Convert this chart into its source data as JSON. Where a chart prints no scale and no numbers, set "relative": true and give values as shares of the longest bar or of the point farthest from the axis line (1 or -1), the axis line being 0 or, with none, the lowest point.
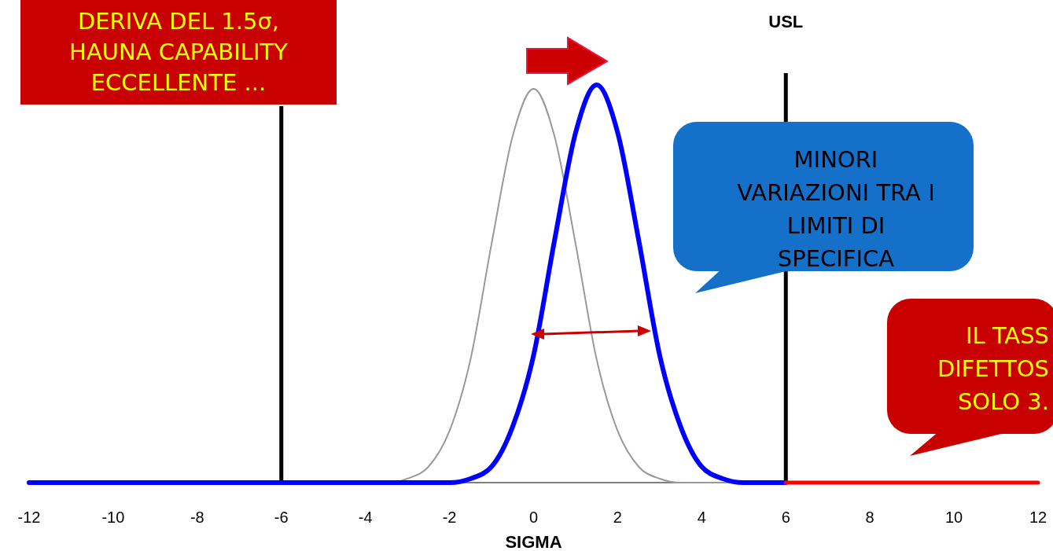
{
  "chart_data": {
    "type": "line",
    "relative": true,
    "xlabel": "SIGMA",
    "xlim": [
      -12,
      12
    ],
    "xticks": [
      -12,
      -10,
      -8,
      -6,
      -4,
      -2,
      0,
      2,
      4,
      6,
      8,
      10,
      12
    ],
    "series": [
      {
        "color": "#999999",
        "x": [
          -3.3,
          -3,
          -2.5,
          -2,
          -1.5,
          -1,
          -0.5,
          0,
          0.5,
          1,
          1.5,
          2,
          2.5,
          3,
          3.5,
          4,
          5
        ],
        "values": [
          0,
          0.01,
          0.04,
          0.13,
          0.31,
          0.6,
          0.87,
          0.99,
          0.87,
          0.6,
          0.31,
          0.13,
          0.04,
          0.01,
          0,
          0,
          0
        ]
      },
      {
        "color": "#0000ff",
        "x": [
          -12,
          -2,
          -1.5,
          -1,
          -0.5,
          0,
          0.5,
          1,
          1.5,
          2,
          2.5,
          3,
          3.5,
          4,
          4.5,
          5,
          6
        ],
        "values": [
          0,
          0,
          0.01,
          0.04,
          0.14,
          0.32,
          0.61,
          0.88,
          1,
          0.88,
          0.61,
          0.32,
          0.14,
          0.04,
          0.01,
          0,
          0
        ]
      },
      {
        "color": "#ff0000",
        "x": [
          6,
          12
        ],
        "values": [
          0,
          0
        ]
      }
    ],
    "ref_lines": [
      {
        "axis": "x",
        "value": -6,
        "color": "#000000"
      },
      {
        "axis": "x",
        "value": 6,
        "label": "USL",
        "color": "#000000"
      }
    ],
    "annotations": [
      "DERIVA DEL 1.5σ,\nHAUNA CAPABILITY\nECCELLENTE ...",
      "MINORI\nVARIAZIONI TRA I\nLIMITI DI\nSPECIFICA",
      "IL TASS\nDIFETTOS\nSOLO 3."
    ]
  }
}
